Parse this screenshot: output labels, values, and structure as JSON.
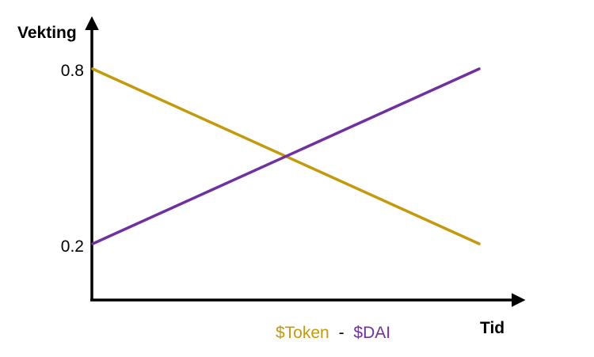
{
  "chart_data": {
    "type": "line",
    "title": "",
    "xlabel": "Tid",
    "ylabel": "Vekting",
    "yticks": [
      "0.8",
      "0.2"
    ],
    "ytick_values": [
      0.8,
      0.2
    ],
    "ylim": [
      0.0,
      1.0
    ],
    "xlim": [
      0,
      1
    ],
    "grid": false,
    "legend": {
      "placement": "bottom-center",
      "separator": "-"
    },
    "series": [
      {
        "name": "$Token",
        "color": "#c29a0c",
        "points": [
          {
            "x": 0,
            "y": 0.8
          },
          {
            "x": 1,
            "y": 0.2
          }
        ]
      },
      {
        "name": "$DAI",
        "color": "#7030a0",
        "points": [
          {
            "x": 0,
            "y": 0.2
          },
          {
            "x": 1,
            "y": 0.8
          }
        ]
      }
    ]
  }
}
